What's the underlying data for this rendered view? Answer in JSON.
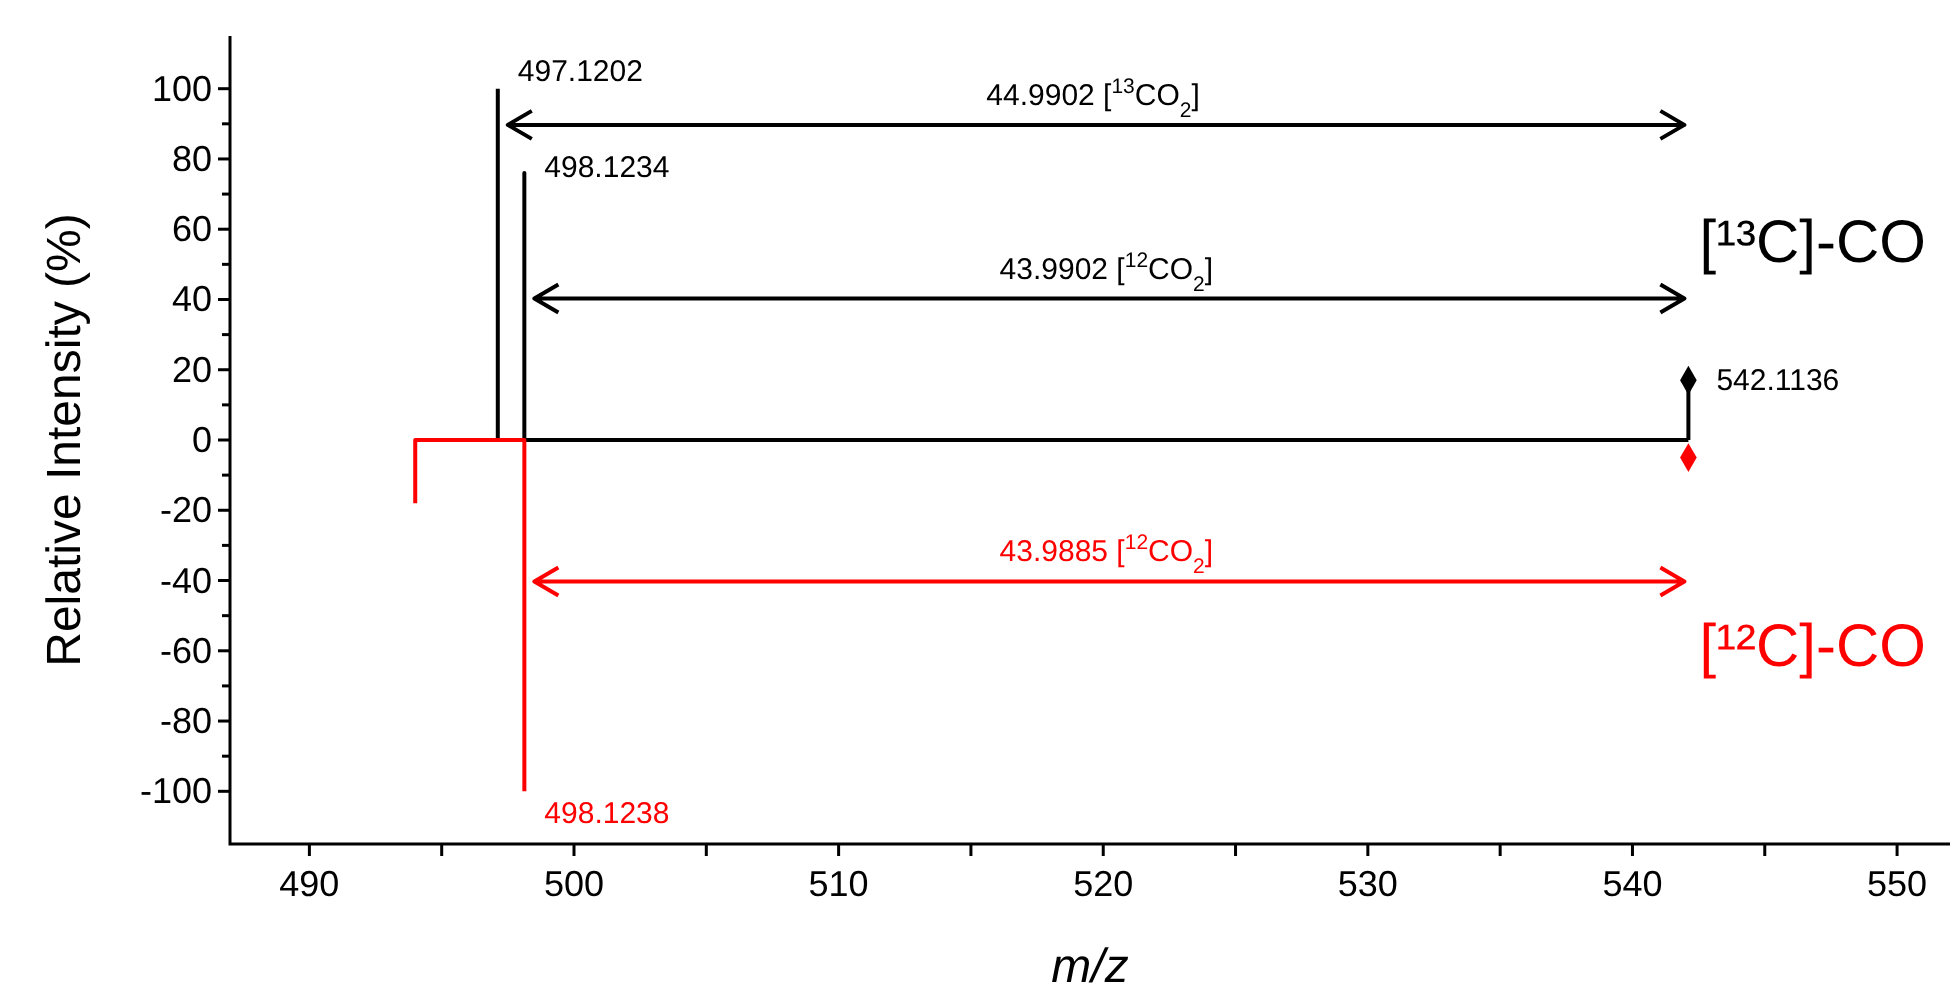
{
  "chart_data": {
    "type": "line",
    "xlabel": "m/z",
    "ylabel": "Relative Intensity (%)",
    "xlim": [
      487,
      552
    ],
    "ylim": [
      -115,
      115
    ],
    "xticks": [
      490,
      {
        "value": 495,
        "label": null
      },
      500,
      {
        "value": 505,
        "label": null
      },
      510,
      {
        "value": 515,
        "label": null
      },
      520,
      {
        "value": 525,
        "label": null
      },
      530,
      {
        "value": 535,
        "label": null
      },
      540,
      {
        "value": 545,
        "label": null
      },
      550
    ],
    "yticks": [
      -100,
      {
        "value": -90,
        "label": null
      },
      -80,
      {
        "value": -70,
        "label": null
      },
      -60,
      {
        "value": -50,
        "label": null
      },
      -40,
      {
        "value": -30,
        "label": null
      },
      -20,
      {
        "value": -10,
        "label": null
      },
      0,
      {
        "value": 10,
        "label": null
      },
      20,
      {
        "value": 30,
        "label": null
      },
      40,
      {
        "value": 50,
        "label": null
      },
      60,
      {
        "value": 70,
        "label": null
      },
      80,
      {
        "value": 90,
        "label": null
      },
      100
    ],
    "grid": false,
    "legend": "right",
    "line_style": "solid",
    "series": [
      {
        "name": "[¹³C]-CO",
        "color": "#000000",
        "x": [
          497.1202,
          497.1202,
          498.1234,
          498.1234,
          498.1234,
          542.1136
        ],
        "values": [
          100,
          0,
          0,
          76,
          0,
          0
        ]
      },
      {
        "type": "lollipop",
        "color": "#000000",
        "marker": "diamond",
        "x": [
          542.1136
        ],
        "values": [
          17
        ]
      },
      {
        "name": "[¹²C]-CO",
        "color": "#ff0000",
        "x": [
          494,
          494,
          498.1238,
          498.1238
        ],
        "values": [
          -18,
          0,
          0,
          -100
        ]
      },
      {
        "type": "scatter",
        "color": "#ff0000",
        "marker": "diamond",
        "x": [
          542.1136
        ],
        "values": [
          -5
        ]
      }
    ],
    "annotations": [
      {
        "text": "497.1202",
        "x": 497.1202,
        "y": 100
      },
      {
        "text": "498.1234",
        "x": 498.1234,
        "y": 76
      },
      {
        "text": "542.1136",
        "x": 542.1136,
        "y": 17
      },
      {
        "text": "498.1238",
        "x": 498.1238,
        "y": -100
      },
      "44.9902 [$^{13}$CO$_{2}$]",
      "43.9902 [$^{12}$CO$_{2}$]",
      "43.9885 [$^{12}$CO$_{2}$]"
    ]
  }
}
